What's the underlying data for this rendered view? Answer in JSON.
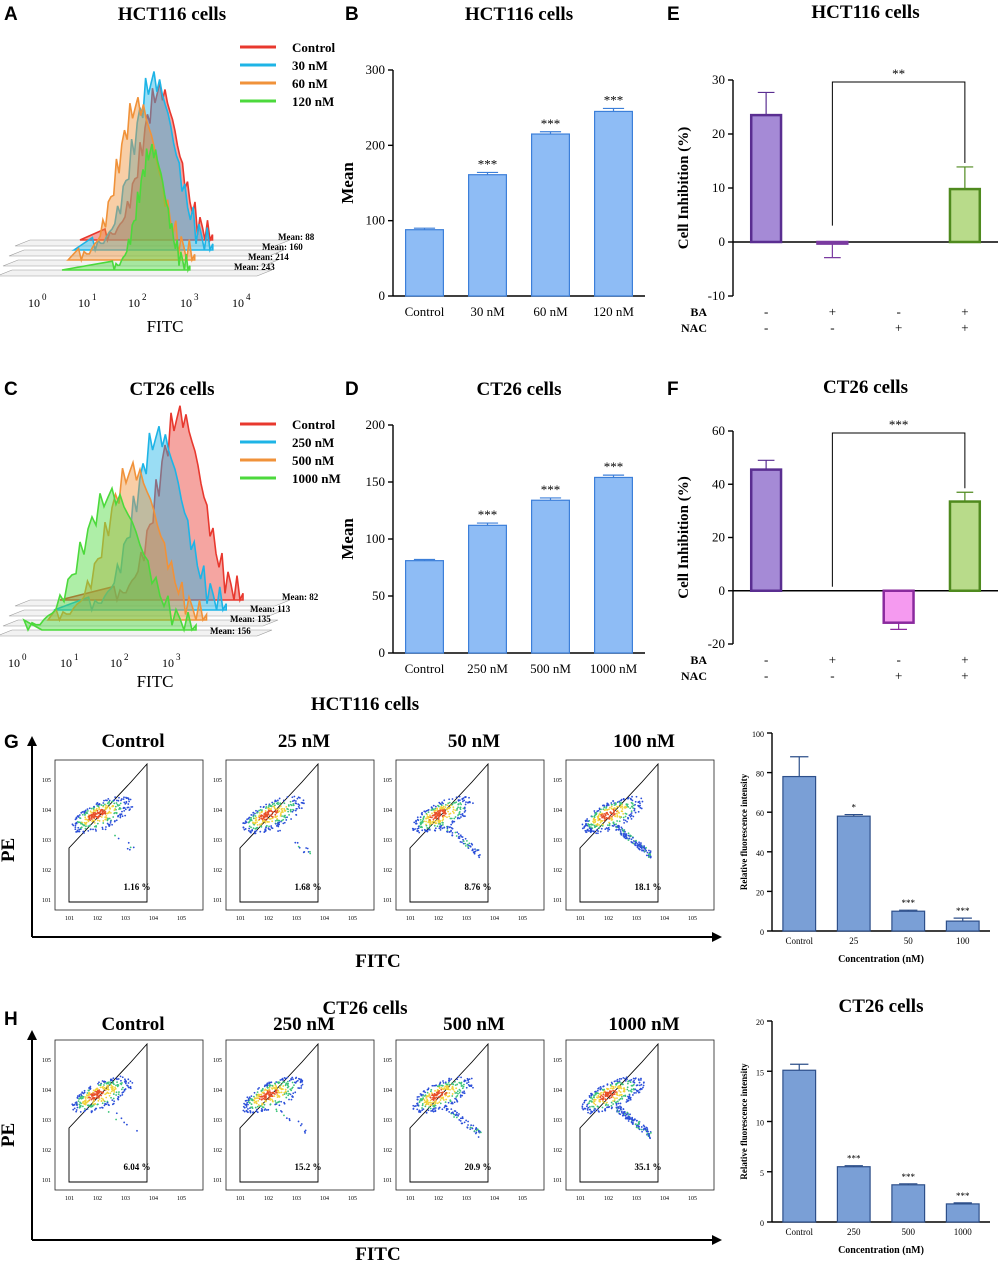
{
  "panels": {
    "A": {
      "letter": "A",
      "title": "HCT116 cells",
      "xlabel": "FITC",
      "legend": [
        {
          "label": "Control",
          "color": "#e8382e"
        },
        {
          "label": "30 nM",
          "color": "#1eb4e6"
        },
        {
          "label": "60 nM",
          "color": "#f0923a"
        },
        {
          "label": "120 nM",
          "color": "#4cd93c"
        }
      ],
      "means": [
        "Mean: 88",
        "Mean: 160",
        "Mean: 214",
        "Mean: 243"
      ],
      "xticks": [
        "10",
        "10",
        "10",
        "10",
        "10"
      ],
      "xexp": [
        "0",
        "1",
        "2",
        "3",
        "4"
      ]
    },
    "C": {
      "letter": "C",
      "title": "CT26 cells",
      "xlabel": "FITC",
      "legend": [
        {
          "label": "Control",
          "color": "#e8382e"
        },
        {
          "label": "250 nM",
          "color": "#1eb4e6"
        },
        {
          "label": "500 nM",
          "color": "#f0923a"
        },
        {
          "label": "1000 nM",
          "color": "#4cd93c"
        }
      ],
      "means": [
        "Mean: 82",
        "Mean: 113",
        "Mean: 135",
        "Mean: 156"
      ],
      "xticks": [
        "10",
        "10",
        "10",
        "10"
      ],
      "xexp": [
        "0",
        "1",
        "2",
        "3"
      ]
    },
    "G": {
      "letter": "G",
      "title": "HCT116 cells",
      "ylabel": "PE",
      "xlabel": "FITC",
      "plots": [
        {
          "label": "Control",
          "pct": "1.16 %"
        },
        {
          "label": "25 nM",
          "pct": "1.68 %"
        },
        {
          "label": "50 nM",
          "pct": "8.76 %"
        },
        {
          "label": "100 nM",
          "pct": "18.1 %"
        }
      ]
    },
    "H": {
      "letter": "H",
      "title": "CT26 cells",
      "ylabel": "PE",
      "xlabel": "FITC",
      "plots": [
        {
          "label": "Control",
          "pct": "6.04 %"
        },
        {
          "label": "250 nM",
          "pct": "15.2 %"
        },
        {
          "label": "500 nM",
          "pct": "20.9 %"
        },
        {
          "label": "1000 nM",
          "pct": "35.1 %"
        }
      ]
    }
  },
  "flow_ticks": {
    "base": "10",
    "exps": [
      "1",
      "2",
      "3",
      "4",
      "5"
    ]
  },
  "chart_data": [
    {
      "id": "B",
      "letter": "B",
      "type": "bar",
      "title": "HCT116 cells",
      "ylabel": "Mean",
      "xlabel": "",
      "categories": [
        "Control",
        "30 nM",
        "60 nM",
        "120 nM"
      ],
      "values": [
        88,
        161,
        215,
        245
      ],
      "errors": [
        2,
        3,
        3,
        4
      ],
      "sig": [
        "",
        "***",
        "***",
        "***"
      ],
      "ylim": [
        0,
        300
      ],
      "yticks": [
        0,
        100,
        200,
        300
      ],
      "color": "#8ebcf5",
      "edge": "#3c7fd9"
    },
    {
      "id": "D",
      "letter": "D",
      "type": "bar",
      "title": "CT26 cells",
      "ylabel": "Mean",
      "xlabel": "",
      "categories": [
        "Control",
        "250 nM",
        "500 nM",
        "1000 nM"
      ],
      "values": [
        81,
        112,
        134,
        154
      ],
      "errors": [
        1,
        2,
        2,
        2
      ],
      "sig": [
        "",
        "***",
        "***",
        "***"
      ],
      "ylim": [
        0,
        200
      ],
      "yticks": [
        0,
        50,
        100,
        150,
        200
      ],
      "color": "#8ebcf5",
      "edge": "#3c7fd9"
    },
    {
      "id": "E",
      "letter": "E",
      "type": "bar",
      "title": "HCT116 cells",
      "ylabel": "Cell Inhibition (%)",
      "xlabel": "",
      "categories": [
        "1",
        "2",
        "3",
        "4"
      ],
      "values": [
        23.5,
        -0.3,
        0,
        9.8
      ],
      "errors": [
        4.2,
        2.6,
        0,
        4.1
      ],
      "colors": [
        "#a58ad6",
        "#c9a6e6",
        "#ffffff",
        "#b8db8a"
      ],
      "edges": [
        "#5a2e91",
        "#7a3aa0",
        "#ffffff",
        "#4f8a1e"
      ],
      "ylim": [
        -10,
        30
      ],
      "yticks": [
        -10,
        0,
        10,
        20,
        30
      ],
      "rows": [
        {
          "name": "BA",
          "signs": [
            "-",
            "+",
            "-",
            "+"
          ]
        },
        {
          "name": "NAC",
          "signs": [
            "-",
            "-",
            "+",
            "+"
          ]
        }
      ],
      "bracket": {
        "label": "**",
        "from": 1,
        "to": 3
      }
    },
    {
      "id": "F",
      "letter": "F",
      "type": "bar",
      "title": "CT26 cells",
      "ylabel": "Cell Inhibition (%)",
      "xlabel": "",
      "categories": [
        "1",
        "2",
        "3",
        "4"
      ],
      "values": [
        45.5,
        0,
        -12,
        33.5
      ],
      "errors": [
        3.5,
        0,
        2.5,
        3.5
      ],
      "colors": [
        "#a58ad6",
        "#ffffff",
        "#f59af0",
        "#b8db8a"
      ],
      "edges": [
        "#5a2e91",
        "#ffffff",
        "#8a2a9e",
        "#4f8a1e"
      ],
      "ylim": [
        -20,
        60
      ],
      "yticks": [
        -20,
        0,
        20,
        40,
        60
      ],
      "rows": [
        {
          "name": "BA",
          "signs": [
            "-",
            "+",
            "-",
            "+"
          ]
        },
        {
          "name": "NAC",
          "signs": [
            "-",
            "-",
            "+",
            "+"
          ]
        }
      ],
      "bracket": {
        "label": "***",
        "from": 1,
        "to": 3
      }
    },
    {
      "id": "G2",
      "type": "bar",
      "title": "HCT116 cells",
      "ylabel": "Relative fluorescence intensity",
      "xlabel": "Concentration (nM)",
      "categories": [
        "Control",
        "25",
        "50",
        "100"
      ],
      "values": [
        78,
        58,
        10,
        5
      ],
      "errors": [
        10,
        0.8,
        0.5,
        1.5
      ],
      "sig": [
        "",
        "*",
        "***",
        "***"
      ],
      "ylim": [
        0,
        100
      ],
      "yticks": [
        0,
        20,
        40,
        60,
        80,
        100
      ],
      "color": "#7a9fd6",
      "edge": "#2d4f8a"
    },
    {
      "id": "H2",
      "type": "bar",
      "title": "CT26 cells",
      "ylabel": "Relative fluorescence intensity",
      "xlabel": "Concentration (nM)",
      "categories": [
        "Control",
        "250",
        "500",
        "1000"
      ],
      "values": [
        15.1,
        5.5,
        3.7,
        1.8
      ],
      "errors": [
        0.6,
        0.1,
        0.1,
        0.1
      ],
      "sig": [
        "",
        "***",
        "***",
        "***"
      ],
      "ylim": [
        0,
        20
      ],
      "yticks": [
        0,
        5,
        10,
        15,
        20
      ],
      "color": "#7a9fd6",
      "edge": "#2d4f8a"
    }
  ]
}
